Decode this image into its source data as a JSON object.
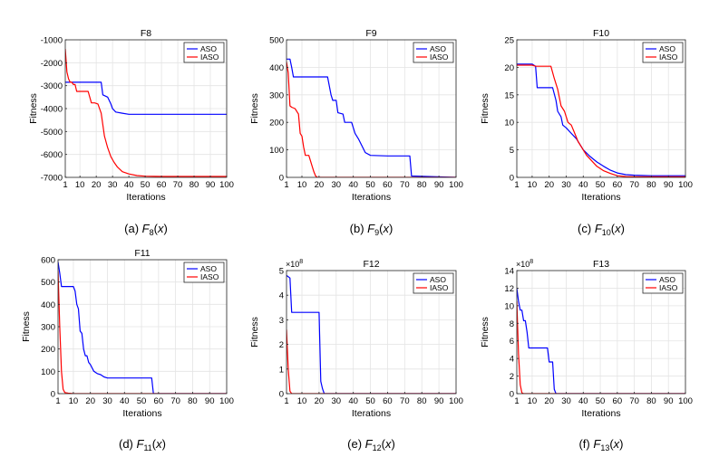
{
  "legend_labels": {
    "aso": "ASO",
    "iaso": "IASO"
  },
  "colors": {
    "aso": "#0000ff",
    "iaso": "#ff0000",
    "grid": "#e4e4e4",
    "axis": "#262626"
  },
  "chart_data": [
    {
      "type": "line",
      "id": "f8",
      "title": "F8",
      "xlabel": "Iterations",
      "ylabel": "Fitness",
      "caption": {
        "label": "(a)",
        "sub": "8"
      },
      "xlim": [
        1,
        100
      ],
      "xticks": [
        1,
        10,
        20,
        30,
        40,
        50,
        60,
        70,
        80,
        90,
        100
      ],
      "ylim": [
        -7000,
        -1000
      ],
      "yticks": [
        -7000,
        -6000,
        -5000,
        -4000,
        -3000,
        -2000,
        -1000
      ],
      "ytick_labels": [
        "-7000",
        "-6000",
        "-5000",
        "-4000",
        "-3000",
        "-2000",
        "-1000"
      ],
      "exponent": "",
      "legend": "top-right",
      "grid": true,
      "series": [
        {
          "name": "ASO",
          "x": [
            1,
            23,
            24,
            27,
            29,
            30,
            32,
            36,
            40,
            100
          ],
          "y": [
            -2850,
            -2850,
            -3400,
            -3500,
            -3800,
            -4000,
            -4150,
            -4200,
            -4250,
            -4250
          ]
        },
        {
          "name": "IASO",
          "x": [
            1,
            2,
            3,
            4,
            5,
            6,
            7,
            8,
            9,
            15,
            17,
            19,
            21,
            23,
            25,
            27,
            29,
            31,
            33,
            36,
            40,
            45,
            50,
            60,
            100
          ],
          "y": [
            -1400,
            -2400,
            -2700,
            -2850,
            -2850,
            -2950,
            -2950,
            -3250,
            -3250,
            -3250,
            -3750,
            -3750,
            -3800,
            -4200,
            -5200,
            -5700,
            -6100,
            -6350,
            -6550,
            -6750,
            -6850,
            -6920,
            -6950,
            -6960,
            -6960
          ]
        }
      ]
    },
    {
      "type": "line",
      "id": "f9",
      "title": "F9",
      "xlabel": "Iterations",
      "ylabel": "Fitness",
      "caption": {
        "label": "(b)",
        "sub": "9"
      },
      "xlim": [
        1,
        100
      ],
      "xticks": [
        1,
        10,
        20,
        30,
        40,
        50,
        60,
        70,
        80,
        90,
        100
      ],
      "ylim": [
        0,
        500
      ],
      "yticks": [
        0,
        100,
        200,
        300,
        400,
        500
      ],
      "ytick_labels": [
        "0",
        "100",
        "200",
        "300",
        "400",
        "500"
      ],
      "exponent": "",
      "legend": "top-right",
      "grid": true,
      "series": [
        {
          "name": "ASO",
          "x": [
            1,
            3,
            4,
            5,
            25,
            27,
            28,
            30,
            31,
            34,
            35,
            39,
            41,
            43,
            45,
            47,
            50,
            60,
            73,
            74,
            100
          ],
          "y": [
            430,
            430,
            400,
            365,
            365,
            300,
            280,
            280,
            235,
            230,
            200,
            200,
            160,
            140,
            115,
            90,
            80,
            78,
            78,
            5,
            0
          ]
        },
        {
          "name": "IASO",
          "x": [
            1,
            2,
            3,
            4,
            6,
            8,
            9,
            10,
            11,
            12,
            13,
            14,
            16,
            17,
            18,
            19,
            21,
            100
          ],
          "y": [
            420,
            380,
            260,
            255,
            250,
            230,
            160,
            150,
            110,
            80,
            80,
            80,
            40,
            20,
            5,
            0,
            0,
            0
          ]
        }
      ]
    },
    {
      "type": "line",
      "id": "f10",
      "title": "F10",
      "xlabel": "Iterations",
      "ylabel": "Fitness",
      "caption": {
        "label": "(c)",
        "sub": "10"
      },
      "xlim": [
        1,
        100
      ],
      "xticks": [
        1,
        10,
        20,
        30,
        40,
        50,
        60,
        70,
        80,
        90,
        100
      ],
      "ylim": [
        0,
        25
      ],
      "yticks": [
        0,
        5,
        10,
        15,
        20,
        25
      ],
      "ytick_labels": [
        "0",
        "5",
        "10",
        "15",
        "20",
        "25"
      ],
      "exponent": "",
      "legend": "top-right",
      "grid": true,
      "series": [
        {
          "name": "ASO",
          "x": [
            1,
            10,
            12,
            13,
            22,
            24,
            25,
            27,
            28,
            30,
            33,
            36,
            40,
            44,
            48,
            52,
            56,
            60,
            65,
            70,
            80,
            100
          ],
          "y": [
            20.6,
            20.6,
            20.2,
            16.3,
            16.3,
            14,
            12,
            11,
            9.5,
            9,
            8,
            7,
            5,
            3.8,
            2.8,
            2,
            1.3,
            0.8,
            0.5,
            0.4,
            0.3,
            0.3
          ]
        },
        {
          "name": "IASO",
          "x": [
            1,
            10,
            12,
            21,
            23,
            25,
            27,
            29,
            31,
            33,
            35,
            37,
            39,
            42,
            45,
            48,
            52,
            56,
            60,
            65,
            70,
            100
          ],
          "y": [
            20.4,
            20.4,
            20.2,
            20.2,
            18,
            16,
            13,
            12,
            10,
            9.5,
            8,
            6.5,
            5.5,
            4,
            3,
            2,
            1.2,
            0.7,
            0.3,
            0.15,
            0.1,
            0.1
          ]
        }
      ]
    },
    {
      "type": "line",
      "id": "f11",
      "title": "F11",
      "xlabel": "Iterations",
      "ylabel": "Fitness",
      "caption": {
        "label": "(d)",
        "sub": "11"
      },
      "xlim": [
        1,
        100
      ],
      "xticks": [
        1,
        10,
        20,
        30,
        40,
        50,
        60,
        70,
        80,
        90,
        100
      ],
      "ylim": [
        0,
        600
      ],
      "yticks": [
        0,
        100,
        200,
        300,
        400,
        500,
        600
      ],
      "ytick_labels": [
        "0",
        "100",
        "200",
        "300",
        "400",
        "500",
        "600"
      ],
      "exponent": "",
      "legend": "top-right",
      "grid": true,
      "series": [
        {
          "name": "ASO",
          "x": [
            1,
            2,
            3,
            10,
            11,
            12,
            13,
            14,
            15,
            16,
            17,
            18,
            19,
            20,
            22,
            24,
            26,
            28,
            30,
            40,
            56,
            57,
            100
          ],
          "y": [
            590,
            540,
            480,
            480,
            460,
            400,
            380,
            280,
            270,
            200,
            170,
            170,
            140,
            130,
            100,
            90,
            85,
            75,
            70,
            70,
            70,
            0,
            0
          ]
        },
        {
          "name": "IASO",
          "x": [
            1,
            2,
            3,
            4,
            5,
            7,
            10,
            100
          ],
          "y": [
            550,
            300,
            100,
            20,
            5,
            2,
            0,
            0
          ]
        }
      ]
    },
    {
      "type": "line",
      "id": "f12",
      "title": "F12",
      "xlabel": "Iterations",
      "ylabel": "Fitness",
      "caption": {
        "label": "(e)",
        "sub": "12"
      },
      "xlim": [
        1,
        100
      ],
      "xticks": [
        1,
        10,
        20,
        30,
        40,
        50,
        60,
        70,
        80,
        90,
        100
      ],
      "ylim": [
        0,
        500000000
      ],
      "yticks": [
        0,
        100000000,
        200000000,
        300000000,
        400000000,
        500000000
      ],
      "ytick_labels": [
        "0",
        "1",
        "2",
        "3",
        "4",
        "5"
      ],
      "exponent": "8",
      "legend": "top-right",
      "grid": true,
      "series": [
        {
          "name": "ASO",
          "x": [
            1,
            3,
            4,
            20,
            21,
            22,
            23,
            100
          ],
          "y": [
            480000000,
            470000000,
            330000000,
            330000000,
            50000000,
            20000000,
            0,
            0
          ]
        },
        {
          "name": "IASO",
          "x": [
            1,
            2,
            3,
            4,
            100
          ],
          "y": [
            260000000,
            100000000,
            10000000,
            0,
            0
          ]
        }
      ]
    },
    {
      "type": "line",
      "id": "f13",
      "title": "F13",
      "xlabel": "Iterations",
      "ylabel": "Fitness",
      "caption": {
        "label": "(f)",
        "sub": "13"
      },
      "xlim": [
        1,
        100
      ],
      "xticks": [
        1,
        10,
        20,
        30,
        40,
        50,
        60,
        70,
        80,
        90,
        100
      ],
      "ylim": [
        0,
        1400000000
      ],
      "yticks": [
        0,
        200000000,
        400000000,
        600000000,
        800000000,
        1000000000,
        1200000000,
        1400000000
      ],
      "ytick_labels": [
        "0",
        "2",
        "4",
        "6",
        "8",
        "10",
        "12",
        "14"
      ],
      "exponent": "8",
      "legend": "top-right",
      "grid": true,
      "series": [
        {
          "name": "ASO",
          "x": [
            1,
            2,
            3,
            4,
            5,
            6,
            7,
            8,
            9,
            10,
            19,
            20,
            22,
            23,
            24,
            25,
            100
          ],
          "y": [
            1200000000,
            1050000000,
            950000000,
            950000000,
            830000000,
            830000000,
            700000000,
            520000000,
            520000000,
            520000000,
            520000000,
            360000000,
            360000000,
            50000000,
            0,
            0,
            0
          ]
        },
        {
          "name": "IASO",
          "x": [
            1,
            2,
            3,
            4,
            5,
            100
          ],
          "y": [
            1050000000,
            450000000,
            100000000,
            10000000,
            0,
            0
          ]
        }
      ]
    }
  ]
}
